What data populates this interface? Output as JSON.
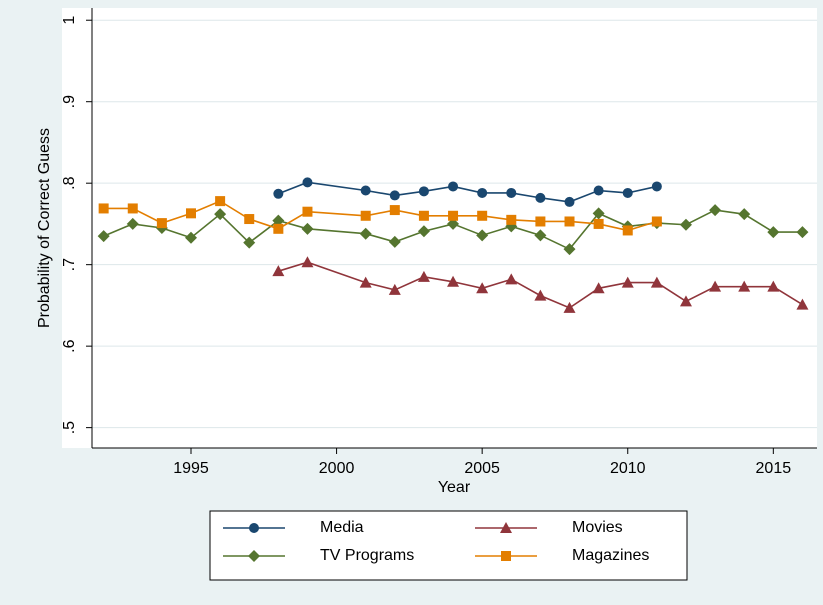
{
  "chart_data": {
    "type": "line",
    "x_label": "Year",
    "y_label": "Probability of Correct Guess",
    "xlim": [
      1991.6,
      2016.5
    ],
    "xticks": [
      1995,
      2000,
      2005,
      2010,
      2015
    ],
    "ylim": [
      0.475,
      1.015
    ],
    "yticks": [
      {
        "value": 0.5,
        "label": ".5"
      },
      {
        "value": 0.6,
        "label": ".6"
      },
      {
        "value": 0.7,
        "label": ".7"
      },
      {
        "value": 0.8,
        "label": ".8"
      },
      {
        "value": 0.9,
        "label": ".9"
      },
      1
    ],
    "grid": true,
    "legend": "bottom",
    "series": [
      {
        "name": "Media",
        "color": "#1a476f",
        "marker": "circle",
        "x": [
          1998,
          1999,
          2001,
          2002,
          2003,
          2004,
          2005,
          2006,
          2007,
          2008,
          2009,
          2010,
          2011
        ],
        "values": [
          0.787,
          0.801,
          0.791,
          0.785,
          0.79,
          0.796,
          0.788,
          0.788,
          0.782,
          0.777,
          0.791,
          0.788,
          0.796
        ]
      },
      {
        "name": "Movies",
        "color": "#90353b",
        "marker": "triangle",
        "x": [
          1998,
          1999,
          2001,
          2002,
          2003,
          2004,
          2005,
          2006,
          2007,
          2008,
          2009,
          2010,
          2011,
          2012,
          2013,
          2014,
          2015,
          2016
        ],
        "values": [
          0.692,
          0.703,
          0.678,
          0.669,
          0.685,
          0.679,
          0.671,
          0.682,
          0.662,
          0.647,
          0.671,
          0.678,
          0.678,
          0.655,
          0.673,
          0.673,
          0.673,
          0.651
        ]
      },
      {
        "name": "TV Programs",
        "color": "#55752f",
        "marker": "diamond",
        "x": [
          1992,
          1993,
          1994,
          1995,
          1996,
          1997,
          1998,
          1999,
          2001,
          2002,
          2003,
          2004,
          2005,
          2006,
          2007,
          2008,
          2009,
          2010,
          2011,
          2012,
          2013,
          2014,
          2015,
          2016
        ],
        "values": [
          0.735,
          0.75,
          0.745,
          0.733,
          0.762,
          0.727,
          0.754,
          0.744,
          0.738,
          0.728,
          0.741,
          0.75,
          0.736,
          0.747,
          0.736,
          0.719,
          0.763,
          0.747,
          0.751,
          0.749,
          0.767,
          0.762,
          0.74,
          0.74
        ]
      },
      {
        "name": "Magazines",
        "color": "#e37e00",
        "marker": "square",
        "x": [
          1992,
          1993,
          1994,
          1995,
          1996,
          1997,
          1998,
          1999,
          2001,
          2002,
          2003,
          2004,
          2005,
          2006,
          2007,
          2008,
          2009,
          2010,
          2011
        ],
        "values": [
          0.769,
          0.769,
          0.751,
          0.763,
          0.778,
          0.756,
          0.744,
          0.765,
          0.76,
          0.767,
          0.76,
          0.76,
          0.76,
          0.755,
          0.753,
          0.753,
          0.75,
          0.742,
          0.753
        ]
      }
    ]
  }
}
